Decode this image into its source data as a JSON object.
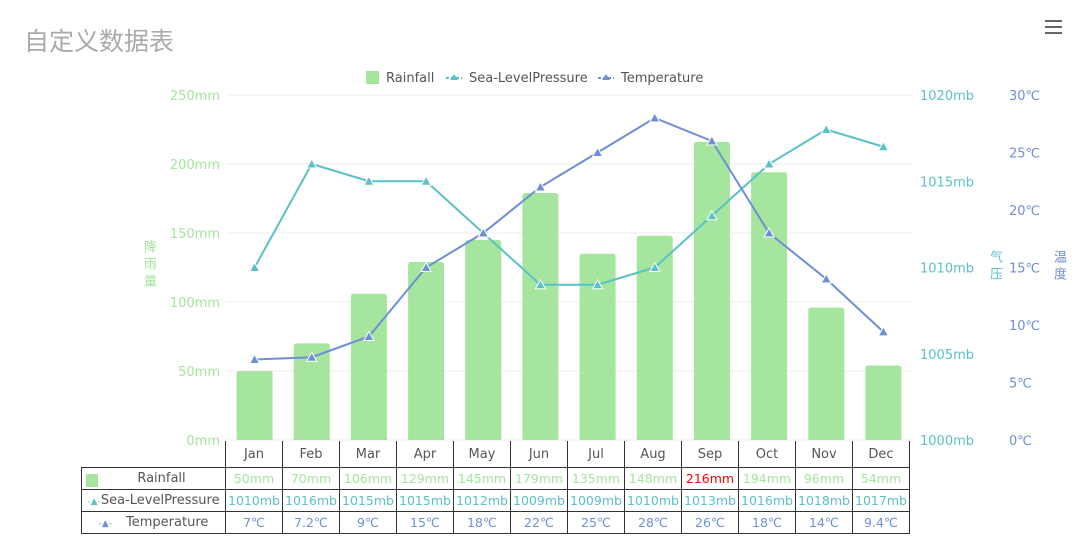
{
  "title": "自定义数据表",
  "menu_icon": "hamburger-menu-icon",
  "colors": {
    "rainfall": "#a5e59d",
    "pressure": "#5bc1c8",
    "temperature": "#6e8fd6",
    "highlight": "#ff0000"
  },
  "chart_data": {
    "type": "bar",
    "title": "自定义数据表",
    "categories": [
      "Jan",
      "Feb",
      "Mar",
      "Apr",
      "May",
      "Jun",
      "Jul",
      "Aug",
      "Sep",
      "Oct",
      "Nov",
      "Dec"
    ],
    "legend": [
      "Rainfall",
      "Sea-LevelPressure",
      "Temperature"
    ],
    "legend_position": "top-center",
    "axes": {
      "rainfall": {
        "label": "降雨量",
        "min": 0,
        "max": 250,
        "ticks": [
          "0mm",
          "50mm",
          "100mm",
          "150mm",
          "200mm",
          "250mm"
        ],
        "position": "left"
      },
      "pressure": {
        "label": "气压",
        "min": 1000,
        "max": 1020,
        "ticks": [
          "1000mb",
          "1005mb",
          "1010mb",
          "1015mb",
          "1020mb"
        ],
        "position": "right"
      },
      "temperature": {
        "label": "温度",
        "min": 0,
        "max": 30,
        "ticks": [
          "0℃",
          "5℃",
          "10℃",
          "15℃",
          "20℃",
          "25℃",
          "30℃"
        ],
        "position": "right-outer"
      }
    },
    "series": [
      {
        "name": "Rainfall",
        "type": "bar",
        "values": [
          50,
          70,
          106,
          129,
          145,
          179,
          135,
          148,
          216,
          194,
          96,
          54
        ],
        "labels": [
          "50mm",
          "70mm",
          "106mm",
          "129mm",
          "145mm",
          "179mm",
          "135mm",
          "148mm",
          "216mm",
          "194mm",
          "96mm",
          "54mm"
        ]
      },
      {
        "name": "Sea-LevelPressure",
        "type": "line",
        "values": [
          1010,
          1016,
          1015,
          1015,
          1012,
          1009,
          1009,
          1010,
          1013,
          1016,
          1018,
          1017
        ],
        "labels": [
          "1010mb",
          "1016mb",
          "1015mb",
          "1015mb",
          "1012mb",
          "1009mb",
          "1009mb",
          "1010mb",
          "1013mb",
          "1016mb",
          "1018mb",
          "1017mb"
        ]
      },
      {
        "name": "Temperature",
        "type": "line",
        "values": [
          7,
          7.2,
          9,
          15,
          18,
          22,
          25,
          28,
          26,
          18,
          14,
          9.4
        ],
        "labels": [
          "7℃",
          "7.2℃",
          "9℃",
          "15℃",
          "18℃",
          "22℃",
          "25℃",
          "28℃",
          "26℃",
          "18℃",
          "14℃",
          "9.4℃"
        ]
      }
    ],
    "grid": true
  }
}
